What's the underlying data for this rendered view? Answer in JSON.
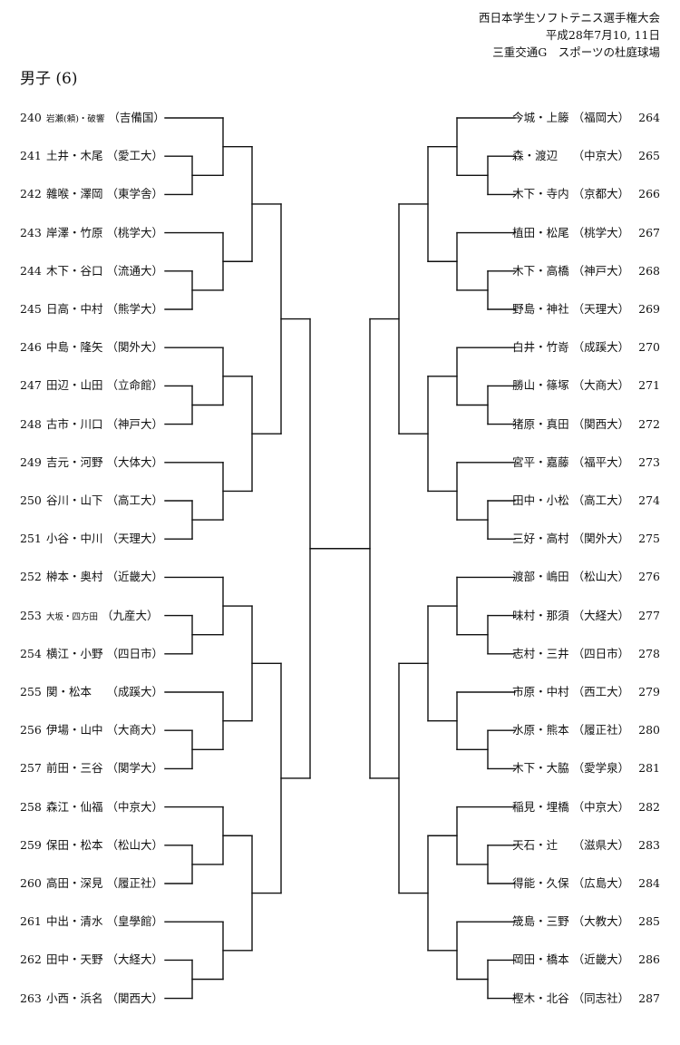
{
  "header": {
    "line1": "西日本学生ソフトテニス選手権大会",
    "line2": "平成28年7月10, 11日",
    "line3": "三重交通G　スポーツの杜庭球場"
  },
  "division": "男子 (6)",
  "left": [
    {
      "num": "240",
      "names": "岩瀬(頼)・破響",
      "school": "（吉備国）"
    },
    {
      "num": "241",
      "names": "土井・木尾",
      "school": "（愛工大）"
    },
    {
      "num": "242",
      "names": "雜喉・澤岡",
      "school": "（東学舎）"
    },
    {
      "num": "243",
      "names": "岸澤・竹原",
      "school": "（桃学大）"
    },
    {
      "num": "244",
      "names": "木下・谷口",
      "school": "（流通大）"
    },
    {
      "num": "245",
      "names": "日高・中村",
      "school": "（熊学大）"
    },
    {
      "num": "246",
      "names": "中島・隆矢",
      "school": "（関外大）"
    },
    {
      "num": "247",
      "names": "田辺・山田",
      "school": "（立命館）"
    },
    {
      "num": "248",
      "names": "古市・川口",
      "school": "（神戸大）"
    },
    {
      "num": "249",
      "names": "吉元・河野",
      "school": "（大体大）"
    },
    {
      "num": "250",
      "names": "谷川・山下",
      "school": "（高工大）"
    },
    {
      "num": "251",
      "names": "小谷・中川",
      "school": "（天理大）"
    },
    {
      "num": "252",
      "names": "榊本・奥村",
      "school": "（近畿大）"
    },
    {
      "num": "253",
      "names": "大坂・四方田",
      "school": "（九産大）"
    },
    {
      "num": "254",
      "names": "横江・小野",
      "school": "（四日市）"
    },
    {
      "num": "255",
      "names": "関・松本　",
      "school": "（成蹊大）"
    },
    {
      "num": "256",
      "names": "伊場・山中",
      "school": "（大商大）"
    },
    {
      "num": "257",
      "names": "前田・三谷",
      "school": "（関学大）"
    },
    {
      "num": "258",
      "names": "森江・仙福",
      "school": "（中京大）"
    },
    {
      "num": "259",
      "names": "保田・松本",
      "school": "（松山大）"
    },
    {
      "num": "260",
      "names": "高田・深見",
      "school": "（履正社）"
    },
    {
      "num": "261",
      "names": "中出・清水",
      "school": "（皇學館）"
    },
    {
      "num": "262",
      "names": "田中・天野",
      "school": "（大経大）"
    },
    {
      "num": "263",
      "names": "小西・浜名",
      "school": "（関西大）"
    }
  ],
  "right": [
    {
      "num": "264",
      "names": "今城・上籐",
      "school": "（福岡大）"
    },
    {
      "num": "265",
      "names": "森・渡辺　",
      "school": "（中京大）"
    },
    {
      "num": "266",
      "names": "木下・寺内",
      "school": "（京都大）"
    },
    {
      "num": "267",
      "names": "植田・松尾",
      "school": "（桃学大）"
    },
    {
      "num": "268",
      "names": "木下・高橋",
      "school": "（神戸大）"
    },
    {
      "num": "269",
      "names": "野島・神社",
      "school": "（天理大）"
    },
    {
      "num": "270",
      "names": "白井・竹嵜",
      "school": "（成蹊大）"
    },
    {
      "num": "271",
      "names": "勝山・篠塚",
      "school": "（大商大）"
    },
    {
      "num": "272",
      "names": "猪原・真田",
      "school": "（関西大）"
    },
    {
      "num": "273",
      "names": "宮平・嘉藤",
      "school": "（福平大）"
    },
    {
      "num": "274",
      "names": "田中・小松",
      "school": "（高工大）"
    },
    {
      "num": "275",
      "names": "三好・高村",
      "school": "（関外大）"
    },
    {
      "num": "276",
      "names": "渡部・嶋田",
      "school": "（松山大）"
    },
    {
      "num": "277",
      "names": "味村・那須",
      "school": "（大経大）"
    },
    {
      "num": "278",
      "names": "志村・三井",
      "school": "（四日市）"
    },
    {
      "num": "279",
      "names": "市原・中村",
      "school": "（西工大）"
    },
    {
      "num": "280",
      "names": "水原・熊本",
      "school": "（履正社）"
    },
    {
      "num": "281",
      "names": "木下・大脇",
      "school": "（愛学泉）"
    },
    {
      "num": "282",
      "names": "稲見・埋橋",
      "school": "（中京大）"
    },
    {
      "num": "283",
      "names": "天石・辻　",
      "school": "（滋県大）"
    },
    {
      "num": "284",
      "names": "得能・久保",
      "school": "（広島大）"
    },
    {
      "num": "285",
      "names": "筬島・三野",
      "school": "（大教大）"
    },
    {
      "num": "286",
      "names": "岡田・橋本",
      "school": "（近畿大）"
    },
    {
      "num": "287",
      "names": "樫木・北谷",
      "school": "（同志社）"
    }
  ]
}
